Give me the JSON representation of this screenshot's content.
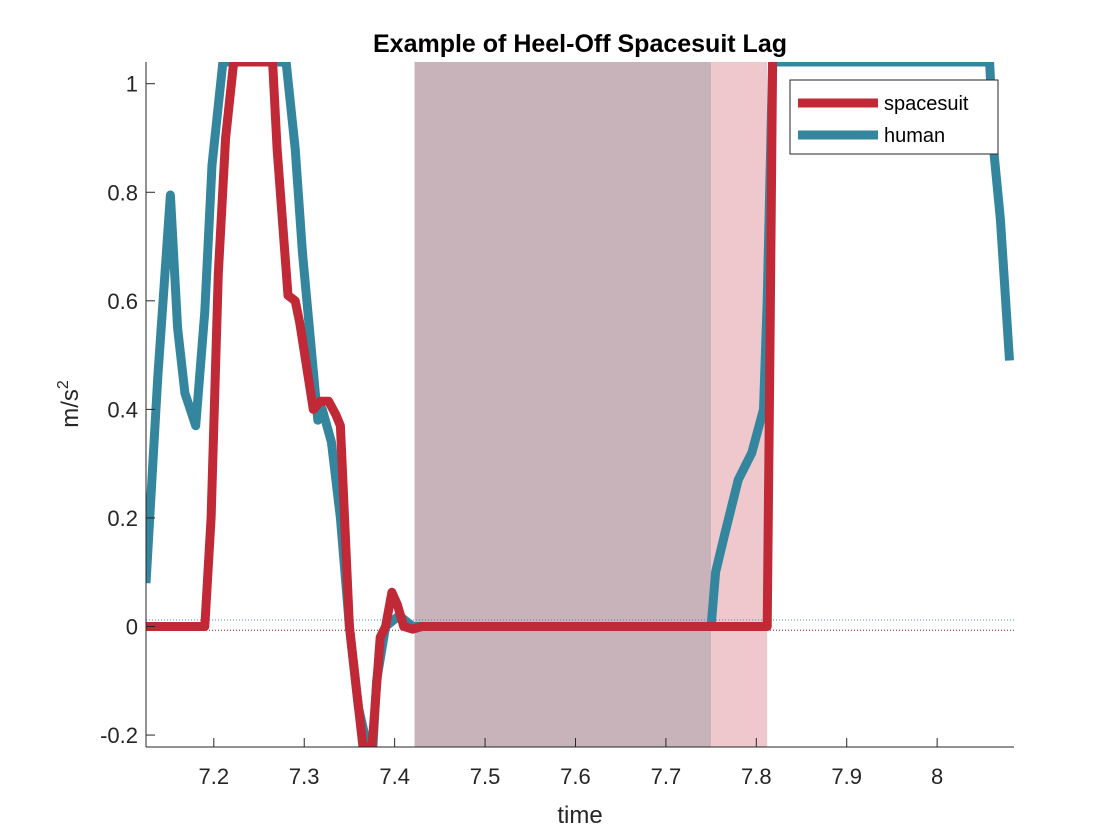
{
  "chart_data": {
    "type": "line",
    "title": "Example of Heel-Off Spacesuit Lag",
    "xlabel": "time",
    "ylabel": "m/s",
    "ylabel_superscript": "2",
    "xlim": [
      7.125,
      8.085
    ],
    "ylim": [
      -0.222,
      1.04
    ],
    "xticks": [
      7.2,
      7.3,
      7.4,
      7.5,
      7.6,
      7.7,
      7.8,
      7.9,
      8.0
    ],
    "xtick_labels": [
      "7.2",
      "7.3",
      "7.4",
      "7.5",
      "7.6",
      "7.7",
      "7.8",
      "7.9",
      "8"
    ],
    "yticks": [
      -0.2,
      0,
      0.2,
      0.4,
      0.6,
      0.8,
      1.0
    ],
    "ytick_labels": [
      "-0.2",
      "0",
      "0.2",
      "0.4",
      "0.6",
      "0.8",
      "1"
    ],
    "grid": false,
    "legend_position": "top-right",
    "shaded_regions": [
      {
        "x": [
          7.422,
          7.75
        ],
        "color": "#c8b3ba"
      },
      {
        "x": [
          7.75,
          7.812
        ],
        "color": "#eec8cc"
      }
    ],
    "reference_lines": [
      {
        "y": 0.012,
        "color": "#3a8ca5",
        "style": "dotted"
      },
      {
        "y": -0.007,
        "color": "#8a1a2a",
        "style": "dotted"
      }
    ],
    "series": [
      {
        "name": "spacesuit",
        "color": "#c02935",
        "points": [
          [
            7.125,
            0.0
          ],
          [
            7.19,
            0.0
          ],
          [
            7.197,
            0.2
          ],
          [
            7.205,
            0.65
          ],
          [
            7.213,
            0.9
          ],
          [
            7.222,
            1.04
          ],
          [
            7.265,
            1.04
          ],
          [
            7.27,
            0.88
          ],
          [
            7.282,
            0.61
          ],
          [
            7.29,
            0.6
          ],
          [
            7.295,
            0.56
          ],
          [
            7.31,
            0.4
          ],
          [
            7.318,
            0.415
          ],
          [
            7.327,
            0.415
          ],
          [
            7.335,
            0.39
          ],
          [
            7.34,
            0.37
          ],
          [
            7.35,
            0.0
          ],
          [
            7.358,
            -0.12
          ],
          [
            7.365,
            -0.222
          ],
          [
            7.375,
            -0.222
          ],
          [
            7.384,
            -0.02
          ],
          [
            7.39,
            0.0
          ],
          [
            7.397,
            0.063
          ],
          [
            7.403,
            0.04
          ],
          [
            7.41,
            0.0
          ],
          [
            7.42,
            -0.005
          ],
          [
            7.43,
            0.0
          ],
          [
            7.812,
            0.0
          ],
          [
            7.815,
            0.5
          ],
          [
            7.818,
            1.04
          ]
        ]
      },
      {
        "name": "human",
        "color": "#34869e",
        "points": [
          [
            7.125,
            0.08
          ],
          [
            7.138,
            0.46
          ],
          [
            7.152,
            0.795
          ],
          [
            7.16,
            0.55
          ],
          [
            7.168,
            0.43
          ],
          [
            7.18,
            0.37
          ],
          [
            7.19,
            0.58
          ],
          [
            7.198,
            0.85
          ],
          [
            7.21,
            1.04
          ],
          [
            7.28,
            1.04
          ],
          [
            7.29,
            0.88
          ],
          [
            7.298,
            0.69
          ],
          [
            7.315,
            0.38
          ],
          [
            7.32,
            0.4
          ],
          [
            7.33,
            0.34
          ],
          [
            7.34,
            0.2
          ],
          [
            7.35,
            0.0
          ],
          [
            7.36,
            -0.15
          ],
          [
            7.37,
            -0.222
          ],
          [
            7.376,
            -0.222
          ],
          [
            7.38,
            -0.1
          ],
          [
            7.39,
            0.0
          ],
          [
            7.405,
            0.02
          ],
          [
            7.42,
            0.0
          ],
          [
            7.75,
            0.0
          ],
          [
            7.755,
            0.1
          ],
          [
            7.765,
            0.17
          ],
          [
            7.78,
            0.27
          ],
          [
            7.795,
            0.32
          ],
          [
            7.808,
            0.4
          ],
          [
            7.812,
            0.6
          ],
          [
            7.818,
            1.04
          ],
          [
            8.058,
            1.04
          ],
          [
            8.063,
            0.87
          ],
          [
            8.07,
            0.75
          ],
          [
            8.08,
            0.49
          ]
        ]
      }
    ]
  }
}
